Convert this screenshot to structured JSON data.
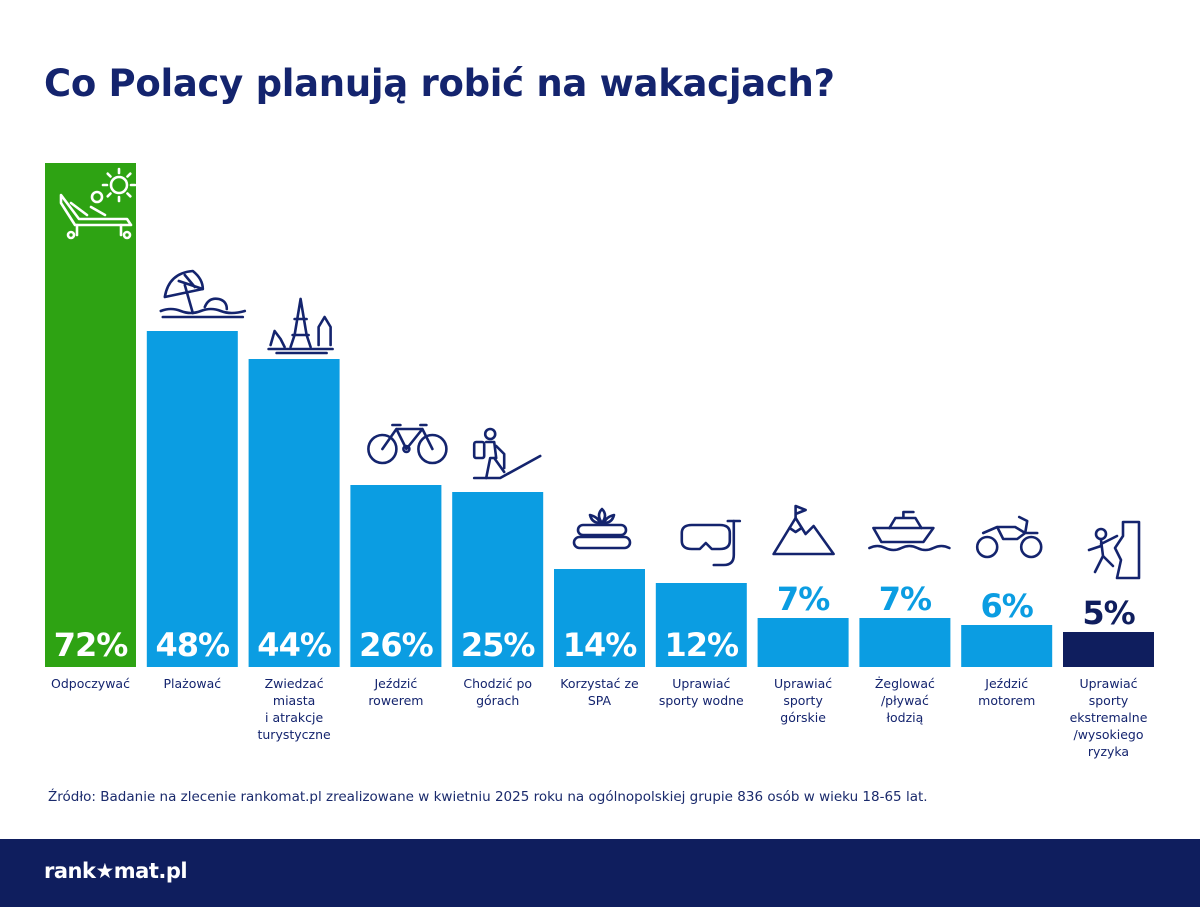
{
  "title": "Co Polacy planują robić na wakacjach?",
  "source": "Źródło: Badanie na zlecenie rankomat.pl zrealizowane w kwietniu 2025 roku na ogólnopolskiej grupie 836 osób w wieku 18-65 lat.",
  "footer": {
    "logo_text": "rankomat.pl"
  },
  "colors": {
    "green": "#2ea313",
    "blue": "#0b9de2",
    "navy": "#0f1e5e",
    "label_navy": "#14246e"
  },
  "chart_data": {
    "type": "bar",
    "categories": [
      "Odpoczywać",
      "Plażować",
      "Zwiedzać miasta i atrakcje turystyczne",
      "Jeździć rowerem",
      "Chodzić po górach",
      "Korzystać ze SPA",
      "Uprawiać sporty wodne",
      "Uprawiać sporty górskie",
      "Żeglować /pływać łodzią",
      "Jeździć motorem",
      "Uprawiać sporty ekstremalne /wysokiego ryzyka"
    ],
    "category_lines": [
      [
        "Odpoczywać"
      ],
      [
        "Plażować"
      ],
      [
        "Zwiedzać",
        "miasta",
        "i atrakcje",
        "turystyczne"
      ],
      [
        "Jeździć",
        "rowerem"
      ],
      [
        "Chodzić po",
        "górach"
      ],
      [
        "Korzystać ze",
        "SPA"
      ],
      [
        "Uprawiać",
        "sporty wodne"
      ],
      [
        "Uprawiać",
        "sporty",
        "górskie"
      ],
      [
        "Żeglować",
        "/pływać",
        "łodzią"
      ],
      [
        "Jeździć",
        "motorem"
      ],
      [
        "Uprawiać",
        "sporty",
        "ekstremalne",
        "/wysokiego",
        "ryzyka"
      ]
    ],
    "values": [
      72,
      48,
      44,
      26,
      25,
      14,
      12,
      7,
      7,
      6,
      5
    ],
    "value_labels": [
      "72%",
      "48%",
      "44%",
      "26%",
      "25%",
      "14%",
      "12%",
      "7%",
      "7%",
      "6%",
      "5%"
    ],
    "bar_colors": [
      "#2ea313",
      "#0b9de2",
      "#0b9de2",
      "#0b9de2",
      "#0b9de2",
      "#0b9de2",
      "#0b9de2",
      "#0b9de2",
      "#0b9de2",
      "#0b9de2",
      "#0f1e5e"
    ],
    "icons": [
      "sunbed-sun-icon",
      "beach-umbrella-icon",
      "eiffel-tower-landmarks-icon",
      "bicycle-icon",
      "hiker-icon",
      "spa-stones-icon",
      "snorkel-mask-icon",
      "mountain-flag-icon",
      "motorboat-icon",
      "quad-bike-icon",
      "climber-icon"
    ],
    "ylim": [
      0,
      72
    ],
    "xlabel": "",
    "ylabel": "",
    "grid": false,
    "legend": "none"
  }
}
